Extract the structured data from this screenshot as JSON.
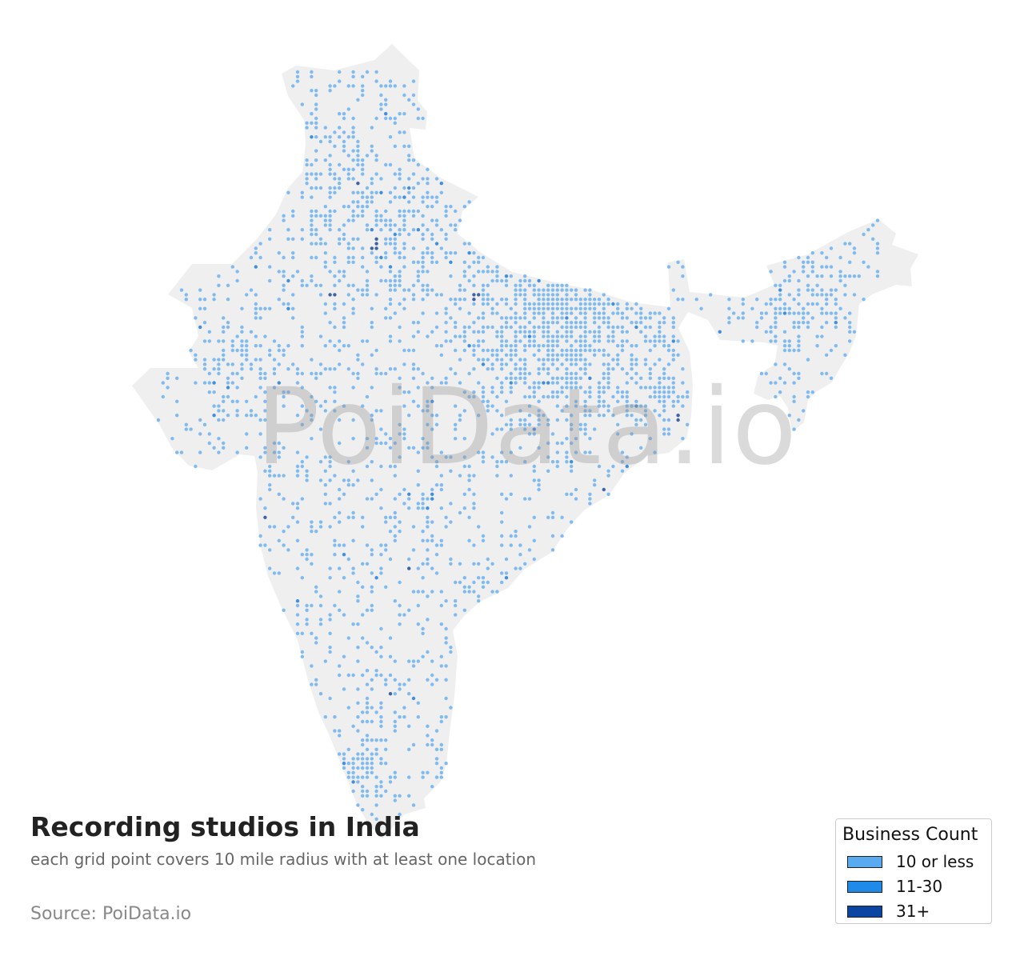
{
  "map": {
    "title": "Recording studios in India",
    "subtitle": "each grid point covers 10 mile radius with at least one location",
    "source": "Source: PoiData.io",
    "watermark": "PoiData.io",
    "land_color": "#efefef",
    "dot_colors": {
      "low": "#7fbaf0",
      "medium": "#3f8fe0",
      "high": "#3f63a8"
    }
  },
  "legend": {
    "title": "Business Count",
    "items": [
      {
        "label": "10 or less",
        "color": "#5aaaf0"
      },
      {
        "label": "11-30",
        "color": "#1f8ae8"
      },
      {
        "label": "31+",
        "color": "#0b45a3"
      }
    ]
  }
}
